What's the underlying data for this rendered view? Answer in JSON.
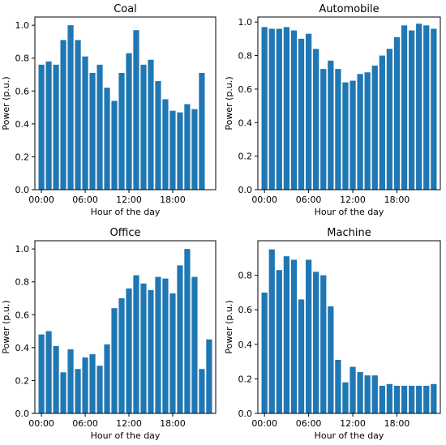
{
  "chart_data": [
    {
      "type": "bar",
      "title": "Coal",
      "xlabel": "Hour of the day",
      "ylabel": "Power (p.u.)",
      "ylim": [
        0,
        1.05
      ],
      "yticks": [
        "0.0",
        "0.2",
        "0.4",
        "0.6",
        "0.8",
        "1.0"
      ],
      "xticks": [
        {
          "x": 0,
          "label": "00:00"
        },
        {
          "x": 6,
          "label": "06:00"
        },
        {
          "x": 12,
          "label": "12:00"
        },
        {
          "x": 18,
          "label": "18:00"
        }
      ],
      "x": [
        0,
        1,
        2,
        3,
        4,
        5,
        6,
        7,
        8,
        9,
        10,
        11,
        12,
        13,
        14,
        15,
        16,
        17,
        18,
        19,
        20,
        21,
        22,
        23
      ],
      "values": [
        0.76,
        0.78,
        0.76,
        0.91,
        1.0,
        0.91,
        0.81,
        0.71,
        0.76,
        0.62,
        0.54,
        0.71,
        0.83,
        0.97,
        0.76,
        0.79,
        0.66,
        0.55,
        0.48,
        0.47,
        0.52,
        0.49,
        0.71,
        0.0
      ],
      "color": "#1f77b4"
    },
    {
      "type": "bar",
      "title": "Automobile",
      "xlabel": "Hour of the day",
      "ylabel": "Power (p.u.)",
      "ylim": [
        0,
        1.03
      ],
      "yticks": [
        "0.0",
        "0.2",
        "0.4",
        "0.6",
        "0.8",
        "1.0"
      ],
      "xticks": [
        {
          "x": 0,
          "label": "00:00"
        },
        {
          "x": 6,
          "label": "06:00"
        },
        {
          "x": 12,
          "label": "12:00"
        },
        {
          "x": 18,
          "label": "18:00"
        }
      ],
      "x": [
        0,
        1,
        2,
        3,
        4,
        5,
        6,
        7,
        8,
        9,
        10,
        11,
        12,
        13,
        14,
        15,
        16,
        17,
        18,
        19,
        20,
        21,
        22,
        23
      ],
      "values": [
        0.97,
        0.96,
        0.96,
        0.97,
        0.95,
        0.9,
        0.93,
        0.84,
        0.72,
        0.77,
        0.72,
        0.64,
        0.65,
        0.69,
        0.7,
        0.74,
        0.8,
        0.84,
        0.91,
        0.98,
        0.95,
        0.99,
        0.98,
        0.96
      ],
      "color": "#1f77b4"
    },
    {
      "type": "bar",
      "title": "Office",
      "xlabel": "Hour of the day",
      "ylabel": "Power (p.u.)",
      "ylim": [
        0,
        1.05
      ],
      "yticks": [
        "0.0",
        "0.2",
        "0.4",
        "0.6",
        "0.8",
        "1.0"
      ],
      "xticks": [
        {
          "x": 0,
          "label": "00:00"
        },
        {
          "x": 6,
          "label": "06:00"
        },
        {
          "x": 12,
          "label": "12:00"
        },
        {
          "x": 18,
          "label": "18:00"
        }
      ],
      "x": [
        0,
        1,
        2,
        3,
        4,
        5,
        6,
        7,
        8,
        9,
        10,
        11,
        12,
        13,
        14,
        15,
        16,
        17,
        18,
        19,
        20,
        21,
        22,
        23
      ],
      "values": [
        0.48,
        0.5,
        0.41,
        0.25,
        0.39,
        0.27,
        0.34,
        0.36,
        0.29,
        0.42,
        0.64,
        0.7,
        0.76,
        0.84,
        0.79,
        0.75,
        0.83,
        0.82,
        0.73,
        0.9,
        1.0,
        0.83,
        0.27,
        0.45
      ],
      "color": "#1f77b4"
    },
    {
      "type": "bar",
      "title": "Machine",
      "xlabel": "Hour of the day",
      "ylabel": "Power (p.u.)",
      "ylim": [
        0,
        1.0
      ],
      "yticks": [
        "0.0",
        "0.2",
        "0.4",
        "0.6",
        "0.8"
      ],
      "xticks": [
        {
          "x": 0,
          "label": "00:00"
        },
        {
          "x": 6,
          "label": "06:00"
        },
        {
          "x": 12,
          "label": "12:00"
        },
        {
          "x": 18,
          "label": "18:00"
        }
      ],
      "x": [
        0,
        1,
        2,
        3,
        4,
        5,
        6,
        7,
        8,
        9,
        10,
        11,
        12,
        13,
        14,
        15,
        16,
        17,
        18,
        19,
        20,
        21,
        22,
        23
      ],
      "values": [
        0.7,
        0.95,
        0.83,
        0.91,
        0.89,
        0.66,
        0.89,
        0.82,
        0.8,
        0.62,
        0.31,
        0.18,
        0.27,
        0.24,
        0.22,
        0.22,
        0.16,
        0.17,
        0.16,
        0.16,
        0.16,
        0.16,
        0.16,
        0.17
      ],
      "color": "#1f77b4"
    }
  ]
}
